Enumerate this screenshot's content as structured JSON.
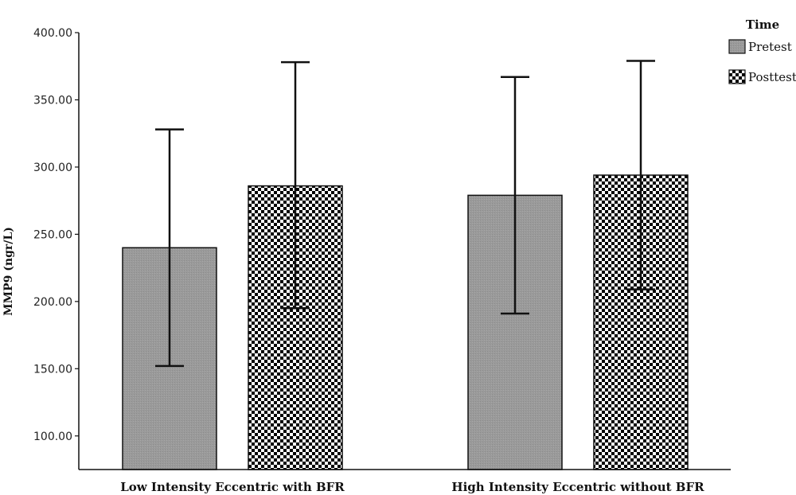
{
  "chart_data": {
    "type": "bar",
    "ylabel": "MMP9 (ngr/L)",
    "ylim": [
      75,
      400
    ],
    "yticks": [
      "100.00",
      "150.00",
      "200.00",
      "250.00",
      "300.00",
      "350.00",
      "400.00"
    ],
    "ytick_values": [
      100,
      150,
      200,
      250,
      300,
      350,
      400
    ],
    "categories": [
      "Low Intensity Eccentric with BFR",
      "High Intensity Eccentric without BFR"
    ],
    "legend_title": "Time",
    "legend_position": "top-right",
    "series": [
      {
        "name": "Pretest",
        "values": [
          240,
          279
        ],
        "error_low": [
          152,
          191
        ],
        "error_high": [
          328,
          367
        ],
        "color": "#9a9a9a",
        "pattern": "solid-gray"
      },
      {
        "name": "Posttest",
        "values": [
          286,
          294
        ],
        "error_low": [
          195,
          209
        ],
        "error_high": [
          378,
          379
        ],
        "color": "#000000",
        "pattern": "checkerboard"
      }
    ]
  }
}
